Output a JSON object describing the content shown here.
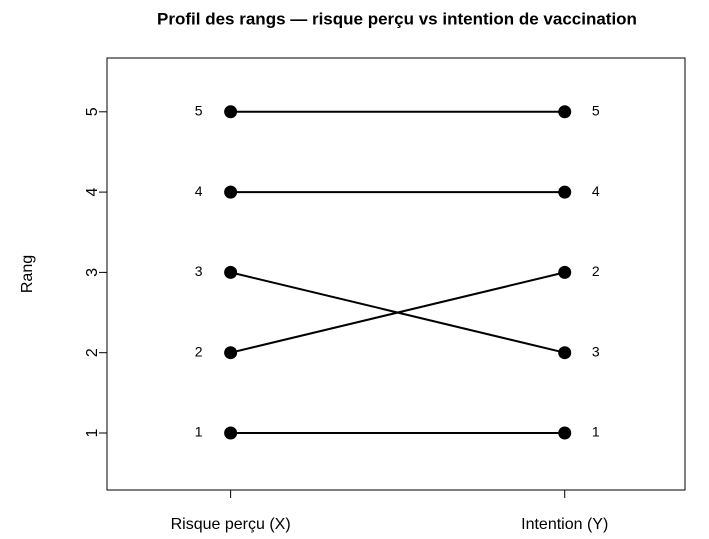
{
  "chart_data": {
    "type": "slope",
    "title": "Profil des rangs — risque perçu vs intention de vaccination",
    "ylabel": "Rang",
    "subjects": [
      1,
      2,
      3,
      4,
      5
    ],
    "values": [
      [
        1,
        2,
        3,
        4,
        5
      ],
      [
        1,
        3,
        2,
        4,
        5
      ]
    ],
    "xlim": [
      0.63,
      2.36
    ],
    "xticks": [
      {
        "value": 1,
        "label": "Risque perçu (X)"
      },
      {
        "value": 2,
        "label": "Intention (Y)"
      }
    ],
    "ylim": [
      0.29,
      5.67
    ],
    "yticks": [
      1,
      2,
      3,
      4,
      5
    ],
    "color": "#000000"
  }
}
